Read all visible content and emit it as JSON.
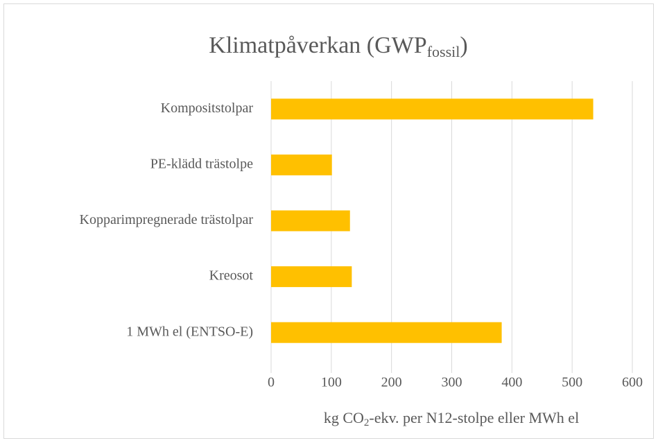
{
  "chart_data": {
    "type": "bar",
    "orientation": "horizontal",
    "title": [
      "Klimatpåverkan (GWP",
      "fossil",
      ")"
    ],
    "xlabel": [
      "kg CO",
      "2",
      "-ekv. per N12-stolpe eller MWh el"
    ],
    "categories": [
      "Kompositstolpar",
      "PE-klädd trästolpe",
      "Kopparimpregnerade trästolpar",
      "Kreosot",
      "1 MWh el (ENTSO-E)"
    ],
    "values": [
      535,
      101,
      131,
      134,
      383
    ],
    "color": "#ffc000",
    "xlim": [
      0,
      600
    ],
    "xticks": [
      0,
      100,
      200,
      300,
      400,
      500,
      600
    ],
    "grid": true
  }
}
